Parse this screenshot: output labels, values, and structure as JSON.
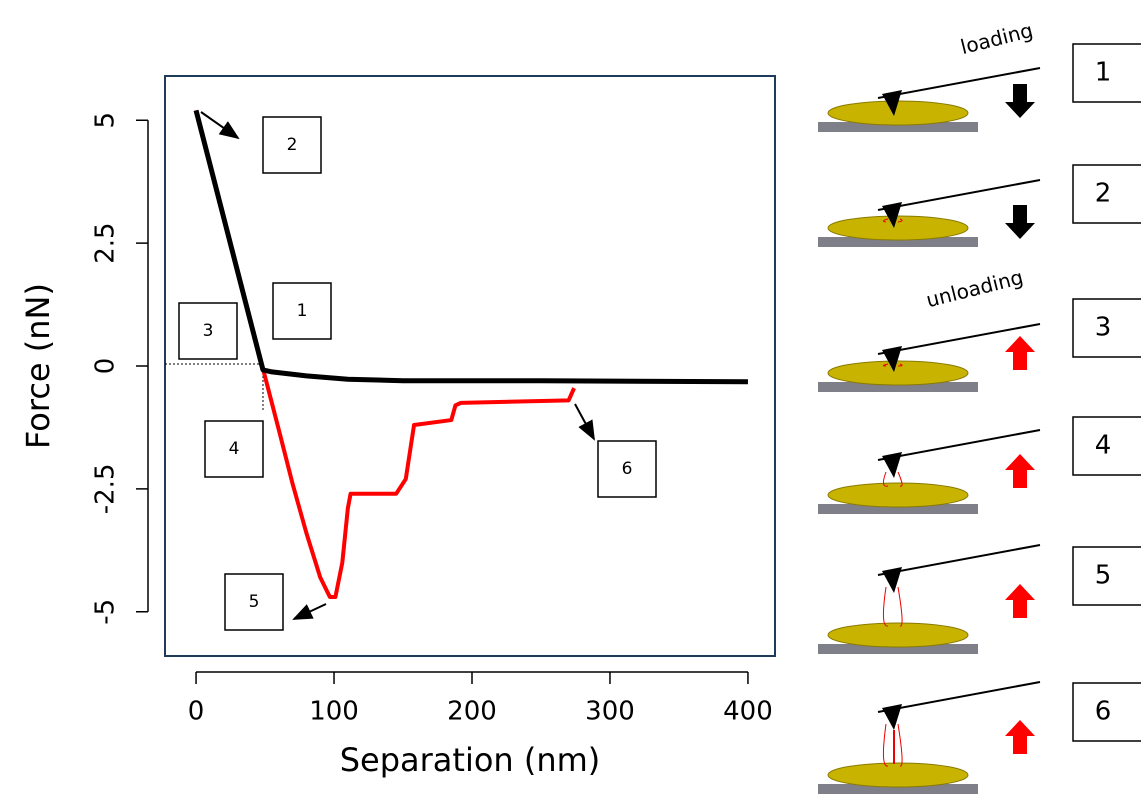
{
  "chart_data": {
    "type": "line",
    "xlabel": "Separation (nm)",
    "ylabel": "Force (nN)",
    "xlim": [
      -22.5,
      419.6
    ],
    "ylim": [
      -5.9,
      5.9
    ],
    "xticks": [
      0,
      100,
      200,
      300,
      400
    ],
    "yticks": [
      5,
      2.5,
      0,
      -2.5,
      -5
    ],
    "series": [
      {
        "color": "#ff0000",
        "x": [
          0,
          25,
          48,
          60,
          70,
          80,
          90,
          97,
          101,
          106,
          110,
          112,
          145,
          152,
          158,
          185,
          188,
          192,
          270,
          274
        ],
        "values": [
          5.2,
          2.5,
          0,
          -1.3,
          -2.4,
          -3.4,
          -4.3,
          -4.7,
          -4.7,
          -4.0,
          -2.9,
          -2.6,
          -2.6,
          -2.3,
          -1.2,
          -1.1,
          -0.8,
          -0.75,
          -0.7,
          -0.45
        ]
      },
      {
        "color": "#000000",
        "x": [
          0,
          48.5,
          55,
          80,
          110,
          150,
          250,
          400
        ],
        "values": [
          5.2,
          -0.08,
          -0.12,
          -0.2,
          -0.27,
          -0.3,
          -0.3,
          -0.32
        ]
      }
    ],
    "annotations": [
      "2",
      "1",
      "3",
      "4",
      "5",
      "6"
    ]
  },
  "schematic": {
    "loading": "loading",
    "unloading": "unloading",
    "steps": [
      "1",
      "2",
      "3",
      "4",
      "5",
      "6"
    ]
  }
}
